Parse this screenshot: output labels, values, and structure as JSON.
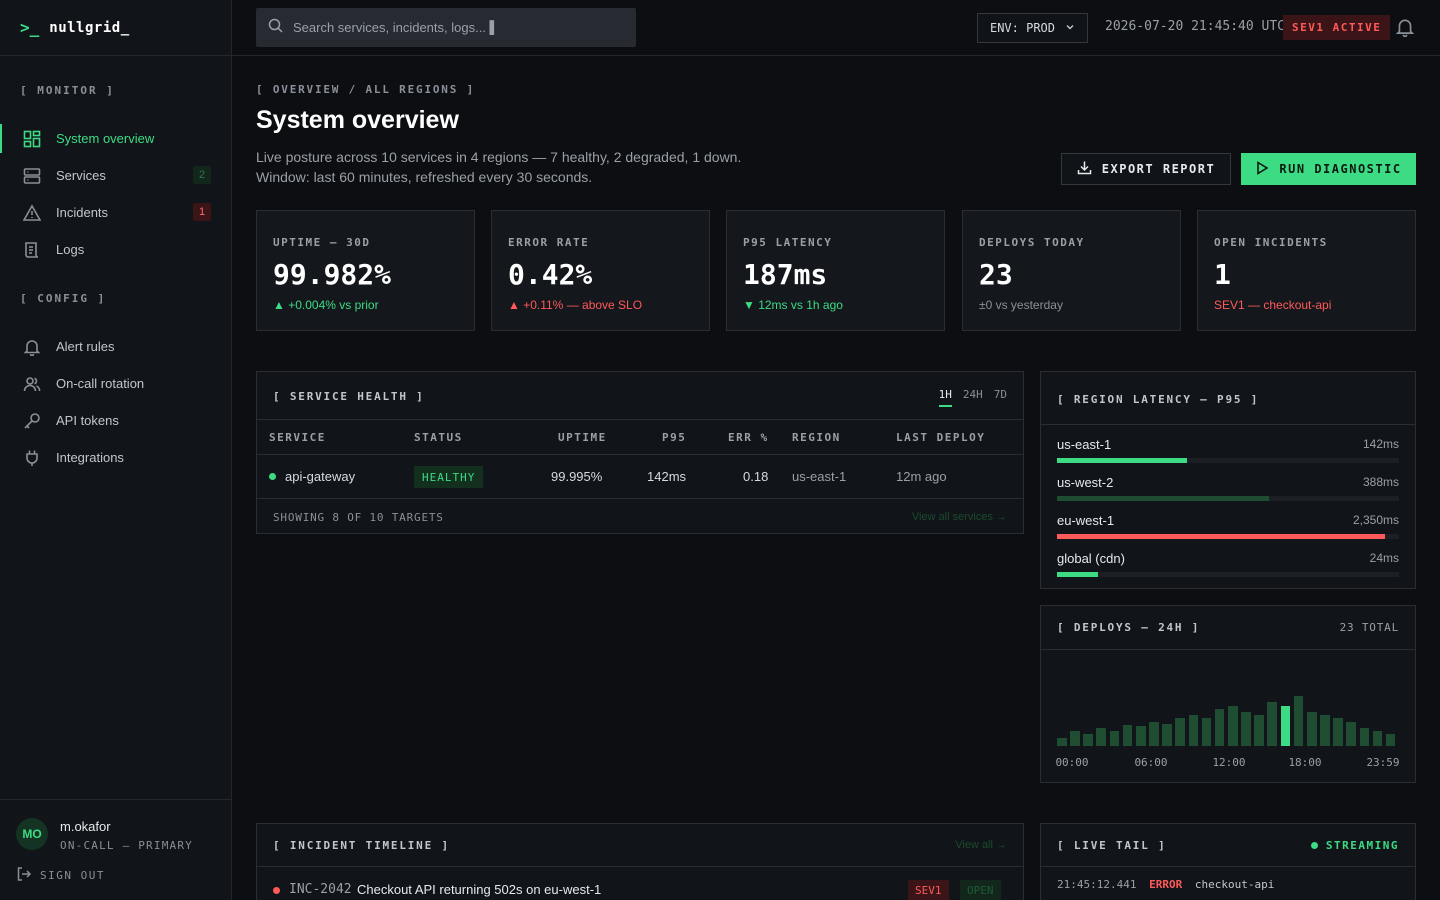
{
  "brand": {
    "prompt": ">_",
    "name": "nullgrid_"
  },
  "sidebar": {
    "sections": [
      {
        "label": "[ MONITOR ]",
        "items": [
          {
            "label": "System overview",
            "icon": "grid-icon",
            "active": true
          },
          {
            "label": "Services",
            "icon": "server-icon",
            "badge": "2"
          },
          {
            "label": "Incidents",
            "icon": "alert-triangle-icon",
            "badge": "1"
          },
          {
            "label": "Logs",
            "icon": "logs-icon"
          }
        ]
      },
      {
        "label": "[ CONFIG ]",
        "items": [
          {
            "label": "Alert rules",
            "icon": "bell-icon"
          },
          {
            "label": "On-call rotation",
            "icon": "users-icon"
          },
          {
            "label": "API tokens",
            "icon": "key-icon"
          },
          {
            "label": "Integrations",
            "icon": "plug-icon"
          }
        ]
      }
    ],
    "user": {
      "initials": "MO",
      "name": "m.okafor",
      "role": "ON-CALL — PRIMARY",
      "signout": "SIGN OUT"
    }
  },
  "topbar": {
    "search_placeholder": "Search services, incidents, logs... ▌",
    "env": "ENV: PROD",
    "clock": "2026-07-20 21:45:40 UTC",
    "sev_active": "SEV1 ACTIVE"
  },
  "main": {
    "breadcrumb": "[ OVERVIEW / ALL REGIONS ]",
    "title": "System overview",
    "subtitle_1": "Live posture across 10 services in 4 regions — 7 healthy, 2 degraded, 1 down.",
    "subtitle_2": "Window: last 60 minutes, refreshed every 30 seconds.",
    "export_label": "EXPORT REPORT",
    "run_label": "RUN DIAGNOSTIC"
  },
  "kpis": [
    {
      "label": "UPTIME — 30D",
      "value": "99.982%",
      "delta": "▲ +0.004% vs prior",
      "tone": "green"
    },
    {
      "label": "ERROR RATE",
      "value": "0.42%",
      "delta": "▲ +0.11% — above SLO",
      "tone": "red"
    },
    {
      "label": "P95 LATENCY",
      "value": "187ms",
      "delta": "▼ 12ms vs 1h ago",
      "tone": "green"
    },
    {
      "label": "DEPLOYS TODAY",
      "value": "23",
      "delta": "±0 vs yesterday",
      "tone": "muted"
    },
    {
      "label": "OPEN INCIDENTS",
      "value": "1",
      "delta": "SEV1 — checkout-api",
      "tone": "red"
    }
  ],
  "service_health": {
    "title": "[ SERVICE HEALTH ]",
    "ranges": [
      "1H",
      "24H",
      "7D"
    ],
    "active_range": "1H",
    "columns": [
      "SERVICE",
      "STATUS",
      "UPTIME",
      "P95",
      "ERR %",
      "REGION",
      "LAST DEPLOY"
    ],
    "rows": [
      {
        "service": "api-gateway",
        "status": "HEALTHY",
        "uptime": "99.995%",
        "p95": "142ms",
        "err": "0.18",
        "region": "us-east-1",
        "last_deploy": "12m ago"
      }
    ],
    "footer": "SHOWING 8 OF 10 TARGETS",
    "footer_link": "View all services →"
  },
  "region_latency": {
    "title": "[ REGION LATENCY — P95 ]",
    "rows": [
      {
        "name": "us-east-1",
        "value": "142ms",
        "fill": 0.38,
        "color": "#3ddc84"
      },
      {
        "name": "us-west-2",
        "value": "388ms",
        "fill": 0.62,
        "color": "#1f4d31"
      },
      {
        "name": "eu-west-1",
        "value": "2,350ms",
        "fill": 0.96,
        "color": "#ff5a5a"
      },
      {
        "name": "global (cdn)",
        "value": "24ms",
        "fill": 0.12,
        "color": "#3ddc84"
      }
    ]
  },
  "deploys": {
    "title": "[ DEPLOYS — 24H ]",
    "total": "23 TOTAL",
    "x_labels": [
      "00:00",
      "06:00",
      "12:00",
      "18:00",
      "23:59"
    ],
    "bars": [
      1,
      2,
      1.5,
      2.5,
      2,
      3,
      2.8,
      3.5,
      3.2,
      4,
      4.5,
      4,
      5.5,
      6,
      5,
      4.5,
      6.5,
      6,
      7.5,
      5,
      4.5,
      4,
      3.5,
      2.5,
      2,
      1.5
    ],
    "highlight_index": 17
  },
  "incidents": {
    "title": "[ INCIDENT TIMELINE ]",
    "link": "View all →",
    "rows": [
      {
        "id": "INC-2042",
        "title": "Checkout API returning 502s on eu-west-1",
        "sev": "SEV1",
        "status": "OPEN"
      }
    ]
  },
  "live_tail": {
    "title": "[ LIVE TAIL ]",
    "status": "STREAMING",
    "lines": [
      {
        "time": "21:45:12.441",
        "level": "ERROR",
        "service": "checkout-api"
      }
    ]
  }
}
